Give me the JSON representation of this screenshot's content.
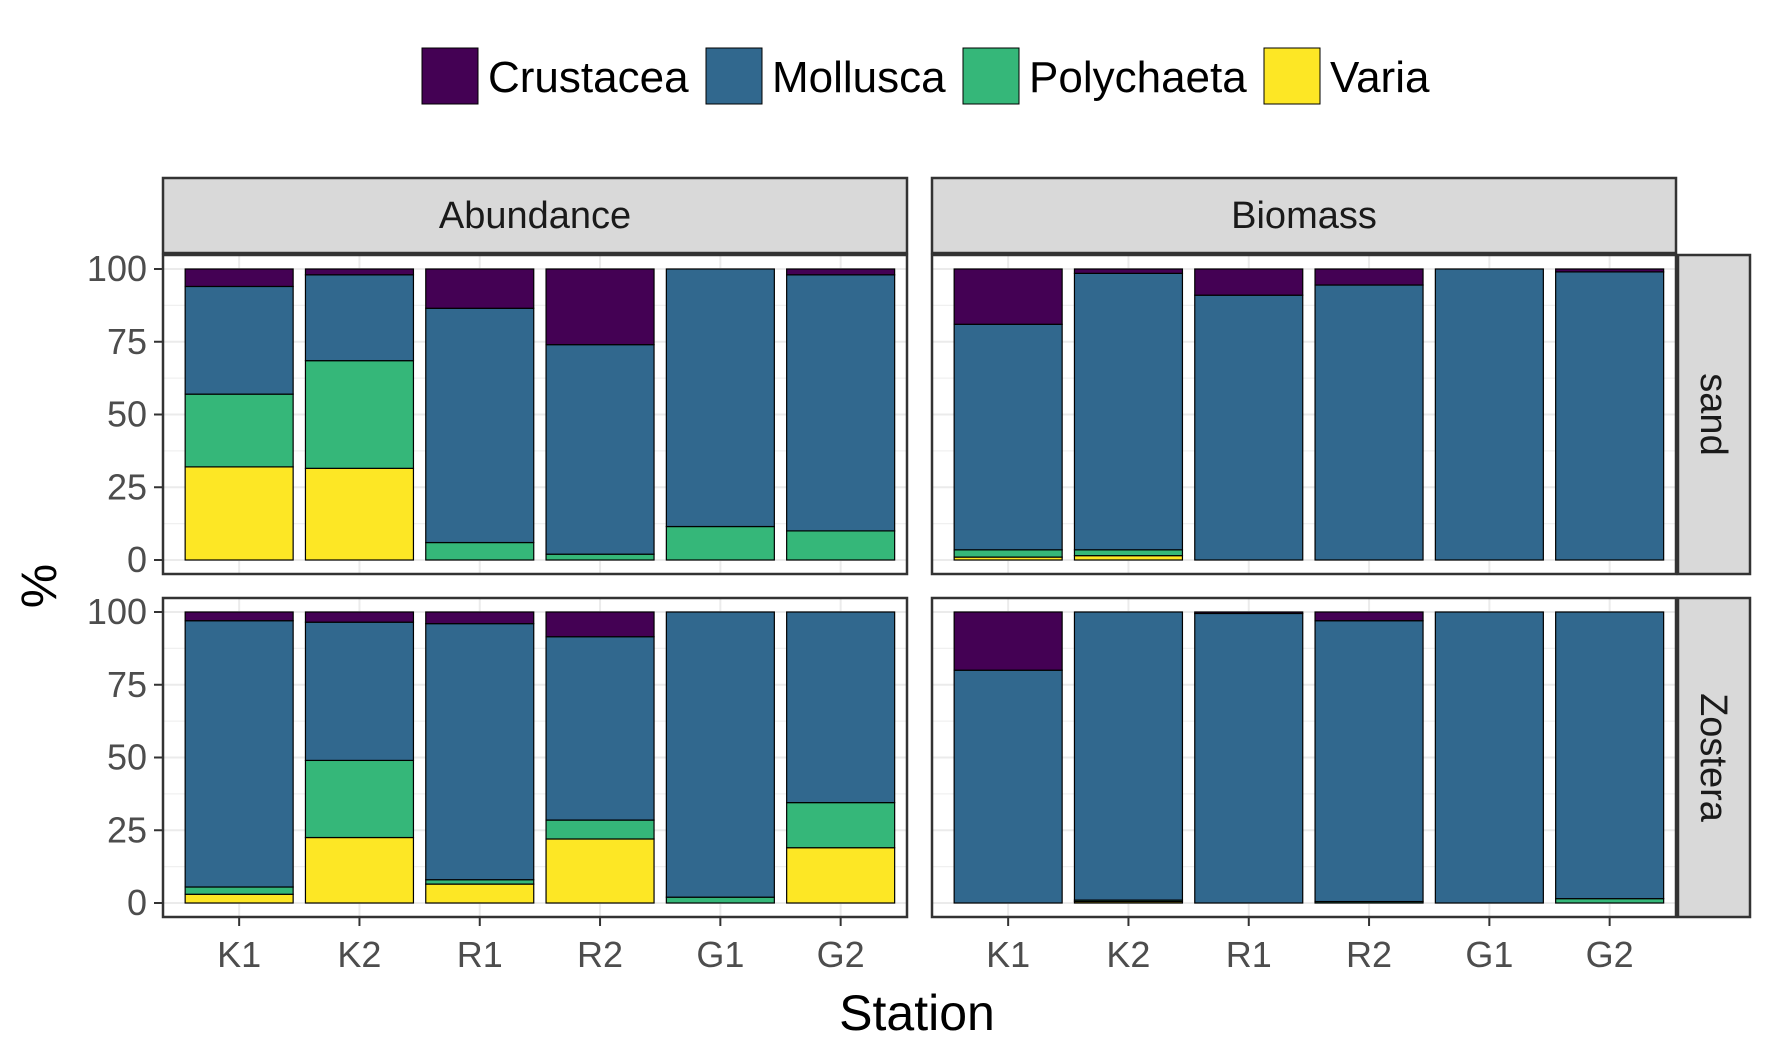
{
  "chart_data": {
    "type": "bar",
    "stacked": true,
    "xlabel": "Station",
    "ylabel": "%",
    "ylim": [
      0,
      100
    ],
    "yticks": [
      0,
      25,
      50,
      75,
      100
    ],
    "categories": [
      "K1",
      "K2",
      "R1",
      "R2",
      "G1",
      "G2"
    ],
    "columns": [
      "Abundance",
      "Biomass"
    ],
    "rows": [
      "sand",
      "Zostera"
    ],
    "grid": true,
    "legend_position": "top",
    "legend": [
      "Crustacea",
      "Mollusca",
      "Polychaeta",
      "Varia"
    ],
    "colors": {
      "Crustacea": "#440154",
      "Mollusca": "#31688e",
      "Polychaeta": "#35b779",
      "Varia": "#fde725",
      "strip_bg": "#d9d9d9",
      "panel_border": "#333333"
    },
    "panels": [
      {
        "column": "Abundance",
        "row": "sand",
        "series": [
          {
            "name": "Varia",
            "values": [
              32,
              31.5,
              0,
              0,
              0,
              0
            ]
          },
          {
            "name": "Polychaeta",
            "values": [
              25,
              37,
              6,
              2,
              11.5,
              10
            ]
          },
          {
            "name": "Mollusca",
            "values": [
              37,
              29.5,
              80.5,
              72,
              88.5,
              88
            ]
          },
          {
            "name": "Crustacea",
            "values": [
              6,
              2,
              13.5,
              26,
              0,
              2
            ]
          }
        ]
      },
      {
        "column": "Biomass",
        "row": "sand",
        "series": [
          {
            "name": "Varia",
            "values": [
              1,
              1.5,
              0,
              0,
              0,
              0
            ]
          },
          {
            "name": "Polychaeta",
            "values": [
              2.5,
              2,
              0,
              0,
              0,
              0
            ]
          },
          {
            "name": "Mollusca",
            "values": [
              77.5,
              95,
              91,
              94.5,
              100,
              99
            ]
          },
          {
            "name": "Crustacea",
            "values": [
              19,
              1.5,
              9,
              5.5,
              0,
              1
            ]
          }
        ]
      },
      {
        "column": "Abundance",
        "row": "Zostera",
        "series": [
          {
            "name": "Varia",
            "values": [
              3,
              22.5,
              6.5,
              22,
              0,
              19
            ]
          },
          {
            "name": "Polychaeta",
            "values": [
              2.5,
              26.5,
              1.5,
              6.5,
              2,
              15.5
            ]
          },
          {
            "name": "Mollusca",
            "values": [
              91.5,
              47.5,
              88,
              63,
              98,
              65.5
            ]
          },
          {
            "name": "Crustacea",
            "values": [
              3,
              3.5,
              4,
              8.5,
              0,
              0
            ]
          }
        ]
      },
      {
        "column": "Biomass",
        "row": "Zostera",
        "series": [
          {
            "name": "Varia",
            "values": [
              0,
              0.5,
              0,
              0,
              0,
              0
            ]
          },
          {
            "name": "Polychaeta",
            "values": [
              0,
              0.5,
              0,
              0.5,
              0,
              1.5
            ]
          },
          {
            "name": "Mollusca",
            "values": [
              80,
              99,
              99.5,
              96.5,
              100,
              98.5
            ]
          },
          {
            "name": "Crustacea",
            "values": [
              20,
              0,
              0.5,
              3,
              0,
              0
            ]
          }
        ]
      }
    ]
  }
}
